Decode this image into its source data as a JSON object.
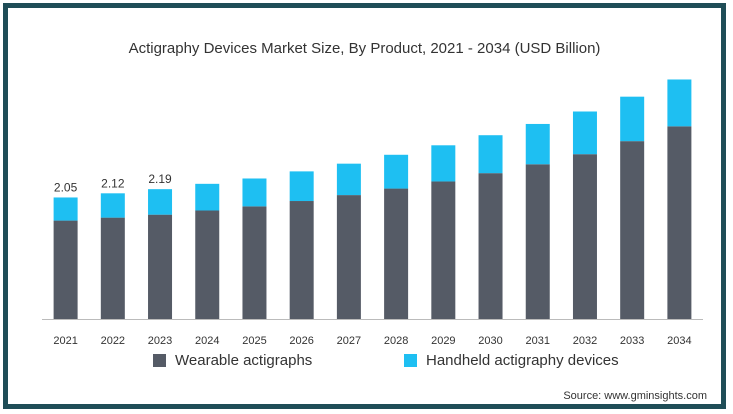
{
  "chart_data": {
    "type": "bar",
    "stacked": true,
    "title": "Actigraphy Devices Market Size, By Product, 2021 - 2034 (USD Billion)",
    "xlabel": "",
    "ylabel": "",
    "categories": [
      "2021",
      "2022",
      "2023",
      "2024",
      "2025",
      "2026",
      "2027",
      "2028",
      "2029",
      "2030",
      "2031",
      "2032",
      "2033",
      "2034"
    ],
    "series": [
      {
        "name": "Wearable actigraphs",
        "color": "#555b66",
        "values": [
          1.66,
          1.71,
          1.76,
          1.83,
          1.9,
          1.99,
          2.09,
          2.2,
          2.32,
          2.46,
          2.61,
          2.78,
          3.0,
          3.25
        ]
      },
      {
        "name": "Handheld actigraphy devices",
        "color": "#1ebff2",
        "values": [
          0.39,
          0.41,
          0.43,
          0.45,
          0.47,
          0.5,
          0.53,
          0.57,
          0.61,
          0.64,
          0.68,
          0.72,
          0.75,
          0.79
        ]
      }
    ],
    "data_labels": [
      "2.05",
      "2.12",
      "2.19"
    ],
    "ylim": [
      0,
      4.2
    ],
    "grid": false,
    "legend_position": "bottom"
  },
  "source": "Source: www.gminsights.com"
}
